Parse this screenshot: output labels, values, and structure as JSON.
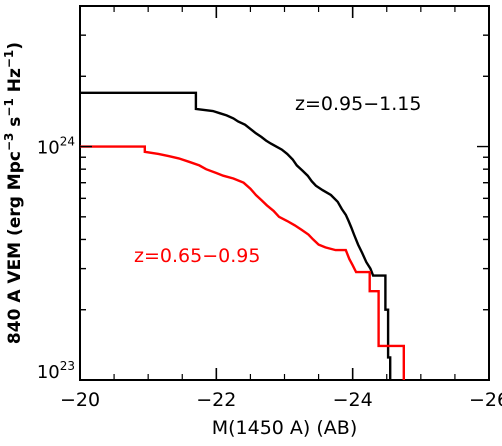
{
  "chart_data": {
    "type": "line",
    "title": "",
    "xlabel": "M(1450 A) (AB)",
    "ylabel": "840 A VEM (erg Mpc",
    "ylabel_sup1": "−3",
    "ylabel_mid": " s",
    "ylabel_sup2": "−1",
    "ylabel_end": " Hz",
    "ylabel_sup3": "−1",
    "ylabel_close": ")",
    "x_scale": "linear",
    "x_reversed": true,
    "xlim": [
      -20,
      -26
    ],
    "x_ticks": [
      -20,
      -22,
      -24,
      -26
    ],
    "x_tick_labels": [
      "−20",
      "−22",
      "−24",
      "−26"
    ],
    "y_scale": "log",
    "ylim": [
      1e+23,
      4e+24
    ],
    "y_tick_labels": [
      {
        "value": 1e+24,
        "base": "10",
        "exp": "24"
      },
      {
        "value": 1e+23,
        "base": "10",
        "exp": "23"
      }
    ],
    "grid": false,
    "series": [
      {
        "name": "z=0.95−1.15",
        "color": "#000000",
        "label_position": "upper-right",
        "points": [
          [
            -20.0,
            1.7e+24
          ],
          [
            -21.7,
            1.7e+24
          ],
          [
            -21.7,
            1.45e+24
          ],
          [
            -21.95,
            1.42e+24
          ],
          [
            -22.05,
            1.39e+24
          ],
          [
            -22.15,
            1.36e+24
          ],
          [
            -22.25,
            1.32e+24
          ],
          [
            -22.32,
            1.28e+24
          ],
          [
            -22.42,
            1.24e+24
          ],
          [
            -22.5,
            1.19e+24
          ],
          [
            -22.58,
            1.14e+24
          ],
          [
            -22.66,
            1.1e+24
          ],
          [
            -22.73,
            1.06e+24
          ],
          [
            -22.8,
            1.03e+24
          ],
          [
            -22.88,
            1e+24
          ],
          [
            -22.96,
            9.7e+23
          ],
          [
            -23.04,
            9.3e+23
          ],
          [
            -23.12,
            8.8e+23
          ],
          [
            -23.18,
            8.3e+23
          ],
          [
            -23.26,
            7.9e+23
          ],
          [
            -23.34,
            7.5e+23
          ],
          [
            -23.4,
            7.1e+23
          ],
          [
            -23.46,
            6.8e+23
          ],
          [
            -23.56,
            6.5e+23
          ],
          [
            -23.68,
            6.2e+23
          ],
          [
            -23.78,
            5.8e+23
          ],
          [
            -23.84,
            5.4e+23
          ],
          [
            -23.9,
            5.1e+23
          ],
          [
            -23.94,
            4.8e+23
          ],
          [
            -23.98,
            4.5e+23
          ],
          [
            -24.02,
            4.2e+23
          ],
          [
            -24.08,
            3.8e+23
          ],
          [
            -24.14,
            3.5e+23
          ],
          [
            -24.2,
            3.2e+23
          ],
          [
            -24.26,
            3e+23
          ],
          [
            -24.3,
            2.8e+23
          ],
          [
            -24.48,
            2.8e+23
          ],
          [
            -24.48,
            2e+23
          ],
          [
            -24.52,
            2e+23
          ],
          [
            -24.52,
            1.25e+23
          ],
          [
            -24.55,
            1.25e+23
          ],
          [
            -24.55,
            1e+23
          ]
        ]
      },
      {
        "name": "z=0.65−0.95",
        "color": "#ff0000",
        "label_position": "center-left",
        "points": [
          [
            -20.0,
            1e+24
          ],
          [
            -20.95,
            1e+24
          ],
          [
            -20.95,
            9.5e+23
          ],
          [
            -21.15,
            9.3e+23
          ],
          [
            -21.3,
            9.1e+23
          ],
          [
            -21.45,
            8.9e+23
          ],
          [
            -21.6,
            8.6e+23
          ],
          [
            -21.75,
            8.3e+23
          ],
          [
            -21.85,
            8e+23
          ],
          [
            -22.0,
            7.7e+23
          ],
          [
            -22.1,
            7.5e+23
          ],
          [
            -22.25,
            7.3e+23
          ],
          [
            -22.4,
            7e+23
          ],
          [
            -22.5,
            6.6e+23
          ],
          [
            -22.58,
            6.2e+23
          ],
          [
            -22.66,
            5.9e+23
          ],
          [
            -22.74,
            5.6e+23
          ],
          [
            -22.84,
            5.3e+23
          ],
          [
            -22.92,
            5e+23
          ],
          [
            -23.04,
            4.8e+23
          ],
          [
            -23.15,
            4.6e+23
          ],
          [
            -23.25,
            4.4e+23
          ],
          [
            -23.35,
            4.2e+23
          ],
          [
            -23.42,
            4e+23
          ],
          [
            -23.5,
            3.8e+23
          ],
          [
            -23.6,
            3.7e+23
          ],
          [
            -23.75,
            3.6e+23
          ],
          [
            -23.9,
            3.6e+23
          ],
          [
            -23.95,
            3.3e+23
          ],
          [
            -24.0,
            3.1e+23
          ],
          [
            -24.05,
            2.9e+23
          ],
          [
            -24.25,
            2.9e+23
          ],
          [
            -24.25,
            2.4e+23
          ],
          [
            -24.38,
            2.4e+23
          ],
          [
            -24.38,
            1.4e+23
          ],
          [
            -24.75,
            1.4e+23
          ],
          [
            -24.75,
            1e+23
          ]
        ]
      }
    ]
  }
}
